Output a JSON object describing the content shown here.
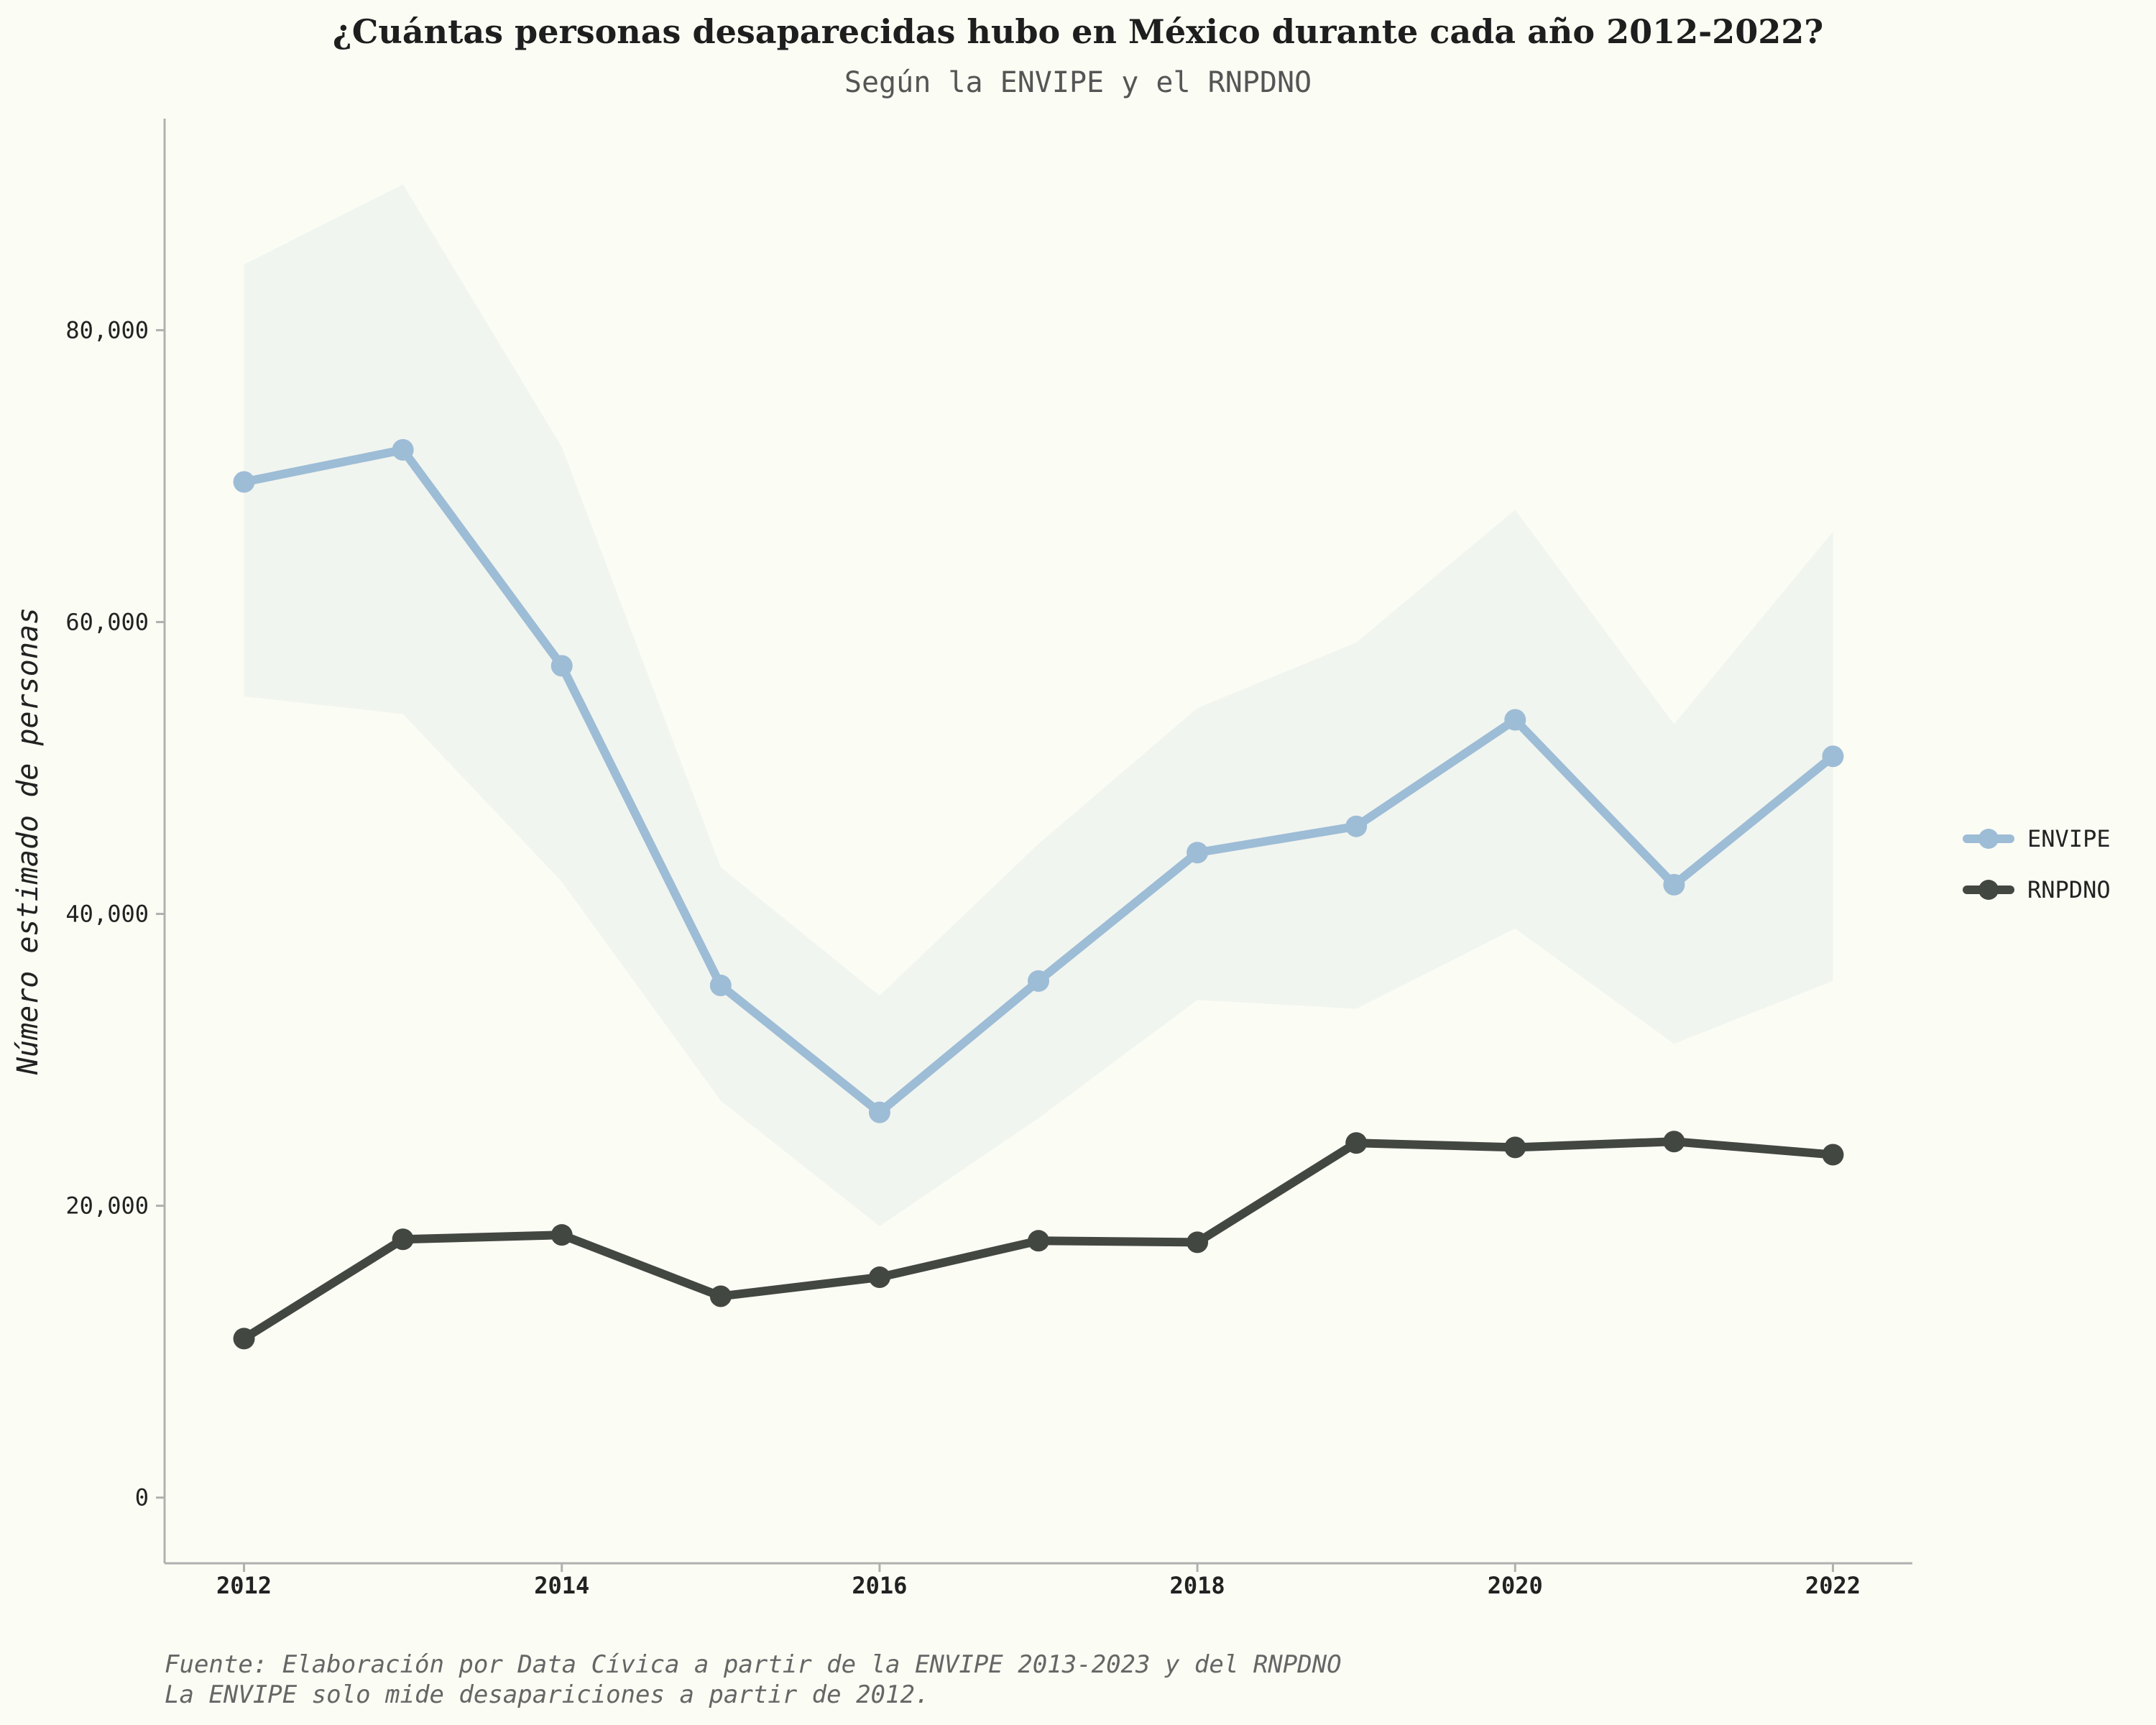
{
  "chart_data": {
    "type": "line",
    "title": "¿Cuántas personas desaparecidas hubo en México durante cada año 2012-2022?",
    "subtitle": "Según la ENVIPE y el RNPDNO",
    "ylabel": "Número estimado de personas",
    "xlabel": "",
    "x": [
      2012,
      2013,
      2014,
      2015,
      2016,
      2017,
      2018,
      2019,
      2020,
      2021,
      2022
    ],
    "x_ticks": [
      "2012",
      "2014",
      "2016",
      "2018",
      "2020",
      "2022"
    ],
    "y_ticks": [
      "0",
      "20,000",
      "40,000",
      "60,000",
      "80,000"
    ],
    "ylim": [
      -4500,
      94500
    ],
    "xlim": [
      2011.5,
      2022.5
    ],
    "grid": false,
    "legend_position": "right",
    "series": [
      {
        "name": "ENVIPE",
        "color": "#9dbcd6",
        "values": [
          69600,
          71800,
          57000,
          35100,
          26400,
          35400,
          44200,
          46000,
          53300,
          42000,
          50800
        ],
        "band_upper": [
          84500,
          90000,
          72000,
          43200,
          34400,
          44800,
          54100,
          58600,
          67700,
          53000,
          66200
        ],
        "band_lower": [
          54900,
          53700,
          42200,
          27200,
          18600,
          26000,
          34100,
          33500,
          39000,
          31100,
          35400
        ]
      },
      {
        "name": "RNPDNO",
        "color": "#434742",
        "values": [
          10900,
          17700,
          18000,
          13800,
          15100,
          17600,
          17500,
          24300,
          24000,
          24400,
          23500
        ]
      }
    ],
    "band_color": "#f1f5ef",
    "caption": [
      "Fuente: Elaboración por Data Cívica a partir de la ENVIPE 2013-2023 y del RNPDNO",
      "La ENVIPE solo mide desapariciones a partir de 2012."
    ]
  }
}
